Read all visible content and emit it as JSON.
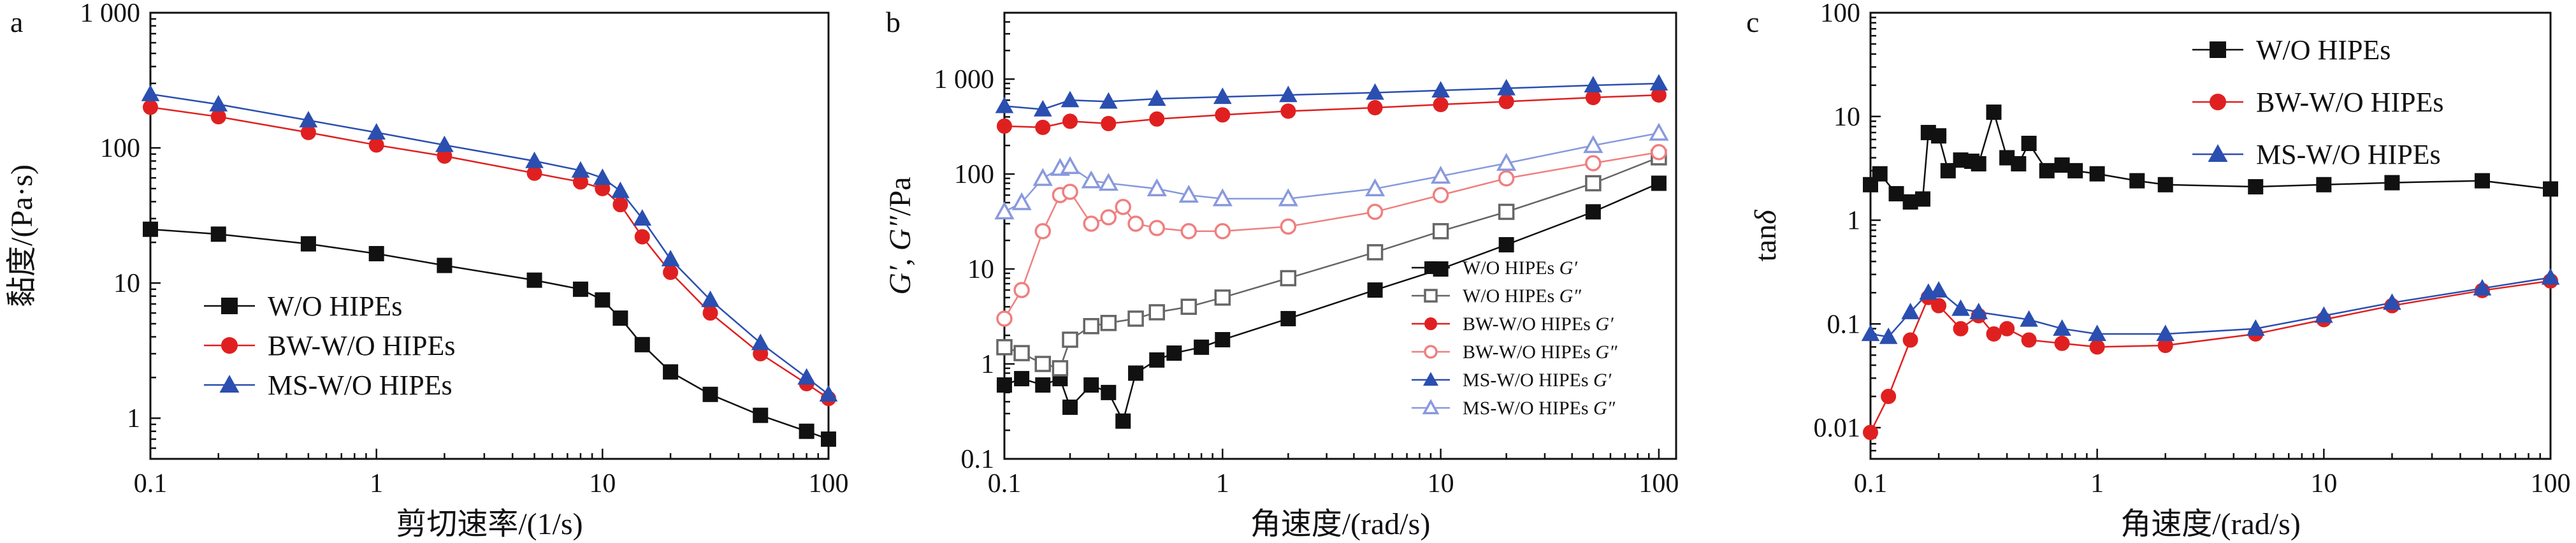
{
  "chart_data": [
    {
      "type": "scatter",
      "panel_label": "a",
      "xlabel": "剪切速率/(1/s)",
      "ylabel": "黏度/(Pa·s)",
      "xscale": "log",
      "yscale": "log",
      "xlim": [
        0.1,
        100
      ],
      "ylim": [
        0.5,
        1000
      ],
      "xticks": [
        0.1,
        1,
        10,
        100
      ],
      "xtick_labels": [
        "0.1",
        "1",
        "10",
        "100"
      ],
      "yticks": [
        1,
        10,
        100,
        1000
      ],
      "ytick_labels": [
        "1",
        "10",
        "100",
        "1 000"
      ],
      "grid": false,
      "legend_position": "lower-left",
      "series": [
        {
          "name": "W/O HIPEs",
          "color": "#111111",
          "marker": "square",
          "x": [
            0.1,
            0.2,
            0.5,
            1,
            2,
            5,
            8,
            10,
            12,
            15,
            20,
            30,
            50,
            80,
            100
          ],
          "y": [
            25,
            23,
            19.5,
            16.5,
            13.5,
            10.5,
            9,
            7.5,
            5.5,
            3.5,
            2.2,
            1.5,
            1.05,
            0.8,
            0.7
          ]
        },
        {
          "name": "BW-W/O HIPEs",
          "color": "#e02020",
          "marker": "circle",
          "x": [
            0.1,
            0.2,
            0.5,
            1,
            2,
            5,
            8,
            10,
            12,
            15,
            20,
            30,
            50,
            80,
            100
          ],
          "y": [
            200,
            170,
            130,
            105,
            87,
            65,
            56,
            50,
            38,
            22,
            12,
            6,
            3,
            1.8,
            1.4
          ]
        },
        {
          "name": "MS-W/O HIPEs",
          "color": "#2a4fb0",
          "marker": "triangle",
          "x": [
            0.1,
            0.2,
            0.5,
            1,
            2,
            5,
            8,
            10,
            12,
            15,
            20,
            30,
            50,
            80,
            100
          ],
          "y": [
            250,
            210,
            160,
            130,
            105,
            80,
            68,
            60,
            48,
            30,
            15,
            7.5,
            3.6,
            2.0,
            1.5
          ]
        }
      ]
    },
    {
      "type": "scatter",
      "panel_label": "b",
      "xlabel": "角速度/(rad/s)",
      "ylabel_parts": [
        "G′",
        ", ",
        "G″",
        "/Pa"
      ],
      "xscale": "log",
      "yscale": "log",
      "xlim": [
        0.1,
        120
      ],
      "ylim": [
        0.1,
        5000
      ],
      "xticks": [
        0.1,
        1,
        10,
        100
      ],
      "xtick_labels": [
        "0.1",
        "1",
        "10",
        "100"
      ],
      "yticks": [
        0.1,
        1,
        10,
        100,
        1000
      ],
      "ytick_labels": [
        "0.1",
        "1",
        "10",
        "100",
        "1 000"
      ],
      "grid": false,
      "legend_position": "lower-right",
      "series": [
        {
          "name": "W/O HIPEs",
          "name_suffix": "G′",
          "color": "#111111",
          "marker": "square",
          "filled": true,
          "x": [
            0.1,
            0.12,
            0.15,
            0.18,
            0.2,
            0.25,
            0.3,
            0.35,
            0.4,
            0.5,
            0.6,
            0.8,
            1,
            2,
            5,
            10,
            20,
            50,
            100
          ],
          "y": [
            0.6,
            0.7,
            0.6,
            0.7,
            0.35,
            0.6,
            0.5,
            0.25,
            0.8,
            1.1,
            1.3,
            1.5,
            1.8,
            3,
            6,
            10,
            18,
            40,
            80
          ]
        },
        {
          "name": "W/O HIPEs",
          "name_suffix": "G″",
          "color": "#666666",
          "marker": "square",
          "filled": false,
          "x": [
            0.1,
            0.12,
            0.15,
            0.18,
            0.2,
            0.25,
            0.3,
            0.4,
            0.5,
            0.7,
            1,
            2,
            5,
            10,
            20,
            50,
            100
          ],
          "y": [
            1.5,
            1.3,
            1.0,
            0.9,
            1.8,
            2.5,
            2.7,
            3.0,
            3.5,
            4.0,
            5.0,
            8,
            15,
            25,
            40,
            80,
            150
          ]
        },
        {
          "name": "BW-W/O HIPEs",
          "name_suffix": "G′",
          "color": "#e02020",
          "marker": "circle",
          "filled": true,
          "x": [
            0.1,
            0.15,
            0.2,
            0.3,
            0.5,
            1,
            2,
            5,
            10,
            20,
            50,
            100
          ],
          "y": [
            320,
            310,
            360,
            340,
            380,
            420,
            460,
            500,
            540,
            580,
            640,
            680
          ]
        },
        {
          "name": "BW-W/O HIPEs",
          "name_suffix": "G″",
          "color": "#f07f7f",
          "marker": "circle",
          "filled": false,
          "x": [
            0.1,
            0.12,
            0.15,
            0.18,
            0.2,
            0.25,
            0.3,
            0.35,
            0.4,
            0.5,
            0.7,
            1,
            2,
            5,
            10,
            20,
            50,
            100
          ],
          "y": [
            3,
            6,
            25,
            60,
            65,
            30,
            35,
            45,
            30,
            27,
            25,
            25,
            28,
            40,
            60,
            90,
            130,
            170
          ]
        },
        {
          "name": "MS-W/O HIPEs",
          "name_suffix": "G′",
          "color": "#2a4fb0",
          "marker": "triangle",
          "filled": true,
          "x": [
            0.1,
            0.15,
            0.2,
            0.3,
            0.5,
            1,
            2,
            5,
            10,
            20,
            50,
            100
          ],
          "y": [
            520,
            480,
            600,
            580,
            620,
            650,
            680,
            720,
            760,
            800,
            860,
            900
          ]
        },
        {
          "name": "MS-W/O HIPEs",
          "name_suffix": "G″",
          "color": "#8899dd",
          "marker": "triangle",
          "filled": false,
          "x": [
            0.1,
            0.12,
            0.15,
            0.18,
            0.2,
            0.25,
            0.3,
            0.5,
            0.7,
            1,
            2,
            5,
            10,
            20,
            50,
            100
          ],
          "y": [
            40,
            50,
            90,
            115,
            120,
            85,
            80,
            70,
            60,
            55,
            55,
            70,
            95,
            130,
            200,
            270
          ]
        }
      ]
    },
    {
      "type": "scatter",
      "panel_label": "c",
      "xlabel": "角速度/(rad/s)",
      "ylabel_parts": [
        "tan",
        "δ"
      ],
      "xscale": "log",
      "yscale": "log",
      "xlim": [
        0.1,
        100
      ],
      "ylim": [
        0.005,
        100
      ],
      "xticks": [
        0.1,
        1,
        10,
        100
      ],
      "xtick_labels": [
        "0.1",
        "1",
        "10",
        "100"
      ],
      "yticks": [
        0.01,
        0.1,
        1,
        10,
        100
      ],
      "ytick_labels": [
        "0.01",
        "0.1",
        "1",
        "10",
        "100"
      ],
      "grid": false,
      "legend_position": "top-center",
      "series": [
        {
          "name": "W/O HIPEs",
          "color": "#111111",
          "marker": "square",
          "x": [
            0.1,
            0.11,
            0.13,
            0.15,
            0.17,
            0.18,
            0.2,
            0.22,
            0.25,
            0.28,
            0.3,
            0.35,
            0.4,
            0.45,
            0.5,
            0.6,
            0.7,
            0.8,
            1,
            1.5,
            2,
            5,
            10,
            20,
            50,
            100
          ],
          "y": [
            2.2,
            2.8,
            1.8,
            1.5,
            1.6,
            7,
            6.5,
            3,
            3.8,
            3.7,
            3.5,
            11,
            4,
            3.5,
            5.5,
            3.0,
            3.4,
            3.0,
            2.8,
            2.4,
            2.2,
            2.1,
            2.2,
            2.3,
            2.4,
            2.0
          ]
        },
        {
          "name": "BW-W/O HIPEs",
          "color": "#e02020",
          "marker": "circle",
          "x": [
            0.1,
            0.12,
            0.15,
            0.18,
            0.2,
            0.25,
            0.3,
            0.35,
            0.4,
            0.5,
            0.7,
            1,
            2,
            5,
            10,
            20,
            50,
            100
          ],
          "y": [
            0.009,
            0.02,
            0.07,
            0.18,
            0.15,
            0.09,
            0.12,
            0.08,
            0.09,
            0.07,
            0.065,
            0.06,
            0.062,
            0.08,
            0.11,
            0.15,
            0.21,
            0.26
          ]
        },
        {
          "name": "MS-W/O HIPEs",
          "color": "#2a4fb0",
          "marker": "triangle",
          "x": [
            0.1,
            0.12,
            0.15,
            0.18,
            0.2,
            0.25,
            0.3,
            0.5,
            0.7,
            1,
            2,
            5,
            10,
            20,
            50,
            100
          ],
          "y": [
            0.08,
            0.075,
            0.13,
            0.2,
            0.21,
            0.14,
            0.13,
            0.11,
            0.09,
            0.08,
            0.08,
            0.09,
            0.12,
            0.16,
            0.22,
            0.28
          ]
        }
      ]
    }
  ]
}
